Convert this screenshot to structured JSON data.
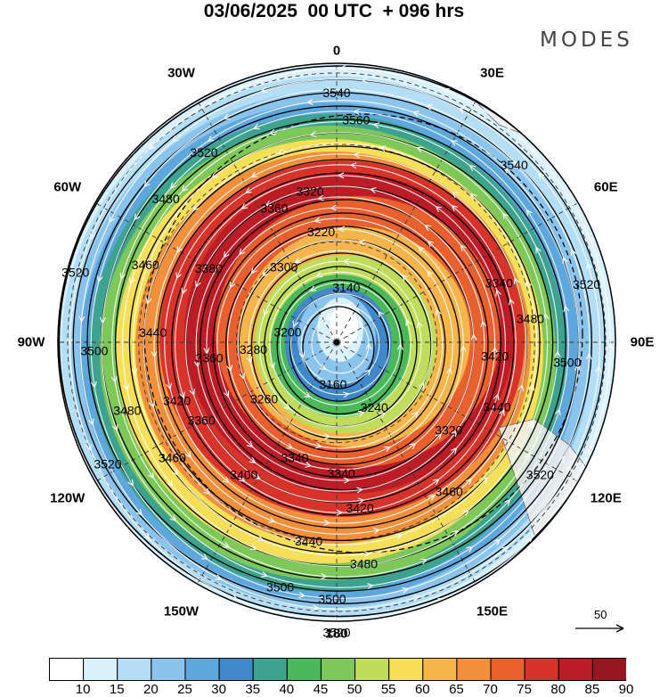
{
  "title": "03/06/2025  00 UTC  + 096 hrs",
  "logo": "MODES",
  "longitude_labels": [
    {
      "text": "0",
      "lon": 0
    },
    {
      "text": "30E",
      "lon": 30
    },
    {
      "text": "60E",
      "lon": 60
    },
    {
      "text": "90E",
      "lon": 90
    },
    {
      "text": "120E",
      "lon": 120
    },
    {
      "text": "150E",
      "lon": 150
    },
    {
      "text": "180",
      "lon": 180
    },
    {
      "text": "150W",
      "lon": 210
    },
    {
      "text": "120W",
      "lon": 240
    },
    {
      "text": "90W",
      "lon": 270
    },
    {
      "text": "60W",
      "lon": 300
    },
    {
      "text": "30W",
      "lon": 330
    }
  ],
  "contour_labels": [
    {
      "text": "3540",
      "a": 0.0,
      "r": 0.895
    },
    {
      "text": "3520",
      "a": 325.0,
      "r": 0.83
    },
    {
      "text": "3560",
      "a": 5.0,
      "r": 0.8
    },
    {
      "text": "3540",
      "a": 45.0,
      "r": 0.9
    },
    {
      "text": "3480",
      "a": 310.0,
      "r": 0.8
    },
    {
      "text": "3360",
      "a": 335.0,
      "r": 0.53
    },
    {
      "text": "3320",
      "a": 350.0,
      "r": 0.55
    },
    {
      "text": "3220",
      "a": 352.0,
      "r": 0.4
    },
    {
      "text": "3460",
      "a": 292.0,
      "r": 0.74
    },
    {
      "text": "3300",
      "a": 325.0,
      "r": 0.33
    },
    {
      "text": "3380",
      "a": 300.0,
      "r": 0.53
    },
    {
      "text": "3520",
      "a": 285.0,
      "r": 0.97
    },
    {
      "text": "3500",
      "a": 268.0,
      "r": 0.87
    },
    {
      "text": "3440",
      "a": 273.0,
      "r": 0.66
    },
    {
      "text": "3360",
      "a": 263.0,
      "r": 0.46
    },
    {
      "text": "3280",
      "a": 265.0,
      "r": 0.3
    },
    {
      "text": "3200",
      "a": 282.0,
      "r": 0.18
    },
    {
      "text": "3140",
      "a": 10.0,
      "r": 0.2
    },
    {
      "text": "3160",
      "a": 185.0,
      "r": 0.15
    },
    {
      "text": "3420",
      "a": 250.0,
      "r": 0.61
    },
    {
      "text": "3480",
      "a": 252.0,
      "r": 0.79
    },
    {
      "text": "3360",
      "a": 240.0,
      "r": 0.56
    },
    {
      "text": "3260",
      "a": 232.0,
      "r": 0.33
    },
    {
      "text": "3460",
      "a": 235.0,
      "r": 0.72
    },
    {
      "text": "3520",
      "a": 242.0,
      "r": 0.93
    },
    {
      "text": "3400",
      "a": 215.0,
      "r": 0.58
    },
    {
      "text": "3340",
      "a": 200.0,
      "r": 0.44
    },
    {
      "text": "3240",
      "a": 150.0,
      "r": 0.27
    },
    {
      "text": "3340",
      "a": 178.0,
      "r": 0.47
    },
    {
      "text": "3420",
      "a": 172.0,
      "r": 0.6
    },
    {
      "text": "3440",
      "a": 188.0,
      "r": 0.72
    },
    {
      "text": "3480",
      "a": 173.0,
      "r": 0.8
    },
    {
      "text": "3500",
      "a": 193.0,
      "r": 0.9
    },
    {
      "text": "3500",
      "a": 181.0,
      "r": 0.92
    },
    {
      "text": "3520",
      "a": 180.0,
      "r": 1.04
    },
    {
      "text": "3320",
      "a": 128.0,
      "r": 0.51
    },
    {
      "text": "3460",
      "a": 143.0,
      "r": 0.67
    },
    {
      "text": "3440",
      "a": 112.0,
      "r": 0.62
    },
    {
      "text": "3520",
      "a": 123.0,
      "r": 0.87
    },
    {
      "text": "3500",
      "a": 95.0,
      "r": 0.83
    },
    {
      "text": "3420",
      "a": 95.0,
      "r": 0.57
    },
    {
      "text": "3480",
      "a": 83.0,
      "r": 0.7
    },
    {
      "text": "3520",
      "a": 77.0,
      "r": 0.92
    },
    {
      "text": "3340",
      "a": 70.0,
      "r": 0.62
    }
  ],
  "colorbar": {
    "labels": [
      "10",
      "15",
      "20",
      "25",
      "30",
      "35",
      "40",
      "45",
      "50",
      "55",
      "60",
      "65",
      "70",
      "75",
      "80",
      "85",
      "90"
    ],
    "colors": [
      "#ffffff",
      "#d9f1fd",
      "#b4def6",
      "#8ac3ec",
      "#5ea7dd",
      "#3f88c9",
      "#3da38f",
      "#4bb85a",
      "#7ec85a",
      "#bfdc5a",
      "#f5df59",
      "#f6b54a",
      "#f28f3b",
      "#ea5f2e",
      "#d8332a",
      "#bb1c26",
      "#951820"
    ]
  },
  "wind_scale": {
    "label": "50"
  }
}
